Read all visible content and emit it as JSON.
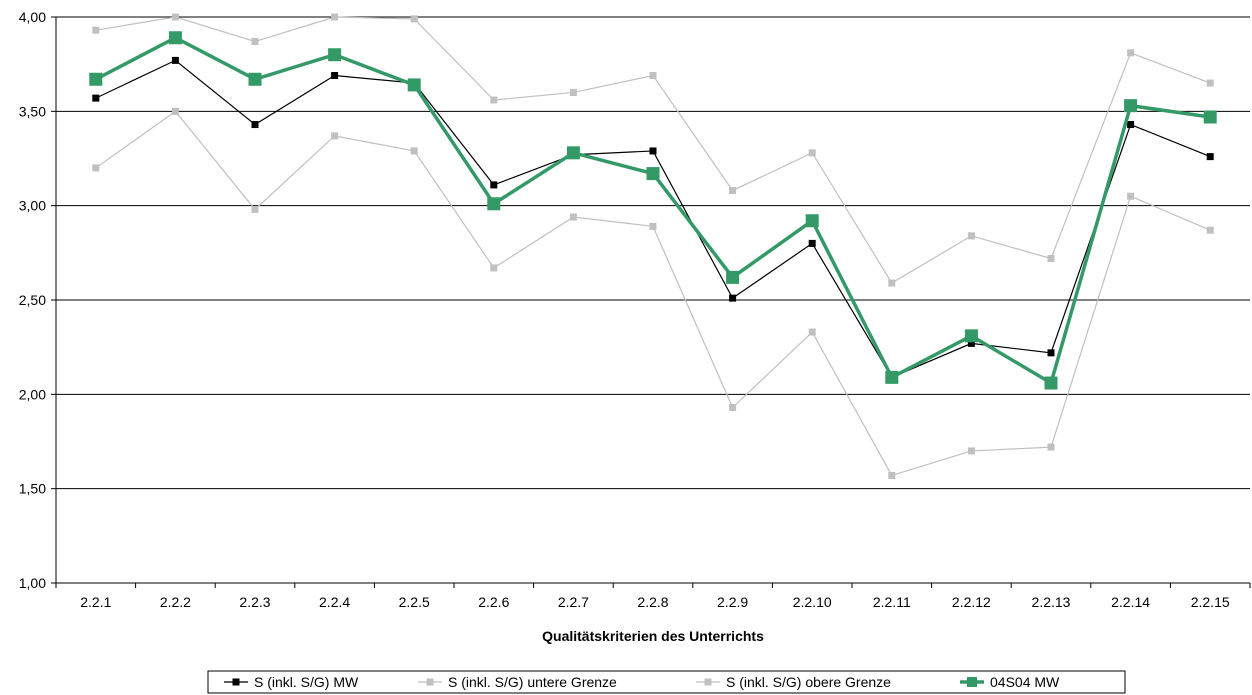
{
  "chart_data": {
    "type": "line",
    "title": "",
    "xlabel": "Qualitätskriterien des Unterrichts",
    "ylabel": "",
    "categories": [
      "2.2.1",
      "2.2.2",
      "2.2.3",
      "2.2.4",
      "2.2.5",
      "2.2.6",
      "2.2.7",
      "2.2.8",
      "2.2.9",
      "2.2.10",
      "2.2.11",
      "2.2.12",
      "2.2.13",
      "2.2.14",
      "2.2.15"
    ],
    "ylim": [
      1.0,
      4.0
    ],
    "yticks": [
      "1,00",
      "1,50",
      "2,00",
      "2,50",
      "3,00",
      "3,50",
      "4,00"
    ],
    "ytick_values": [
      1.0,
      1.5,
      2.0,
      2.5,
      3.0,
      3.5,
      4.0
    ],
    "grid": true,
    "legend_position": "bottom",
    "series": [
      {
        "name": "S (inkl. S/G) MW",
        "color": "#000000",
        "values": [
          3.57,
          3.77,
          3.43,
          3.69,
          3.65,
          3.11,
          3.27,
          3.29,
          2.51,
          2.8,
          2.09,
          2.27,
          2.22,
          3.43,
          3.26
        ]
      },
      {
        "name": "S (inkl. S/G) untere Grenze",
        "color": "#c0c0c0",
        "values": [
          3.2,
          3.5,
          2.98,
          3.37,
          3.29,
          2.67,
          2.94,
          2.89,
          1.93,
          2.33,
          1.57,
          1.7,
          1.72,
          3.05,
          2.87
        ]
      },
      {
        "name": "S (inkl. S/G) obere Grenze",
        "color": "#c0c0c0",
        "values": [
          3.93,
          4.0,
          3.87,
          4.0,
          3.99,
          3.56,
          3.6,
          3.69,
          3.08,
          3.28,
          2.59,
          2.84,
          2.72,
          3.81,
          3.65
        ]
      },
      {
        "name": "04S04 MW",
        "color": "#339966",
        "values": [
          3.67,
          3.89,
          3.67,
          3.8,
          3.64,
          3.01,
          3.28,
          3.17,
          2.62,
          2.92,
          2.09,
          2.31,
          2.06,
          3.53,
          3.47
        ]
      }
    ]
  }
}
